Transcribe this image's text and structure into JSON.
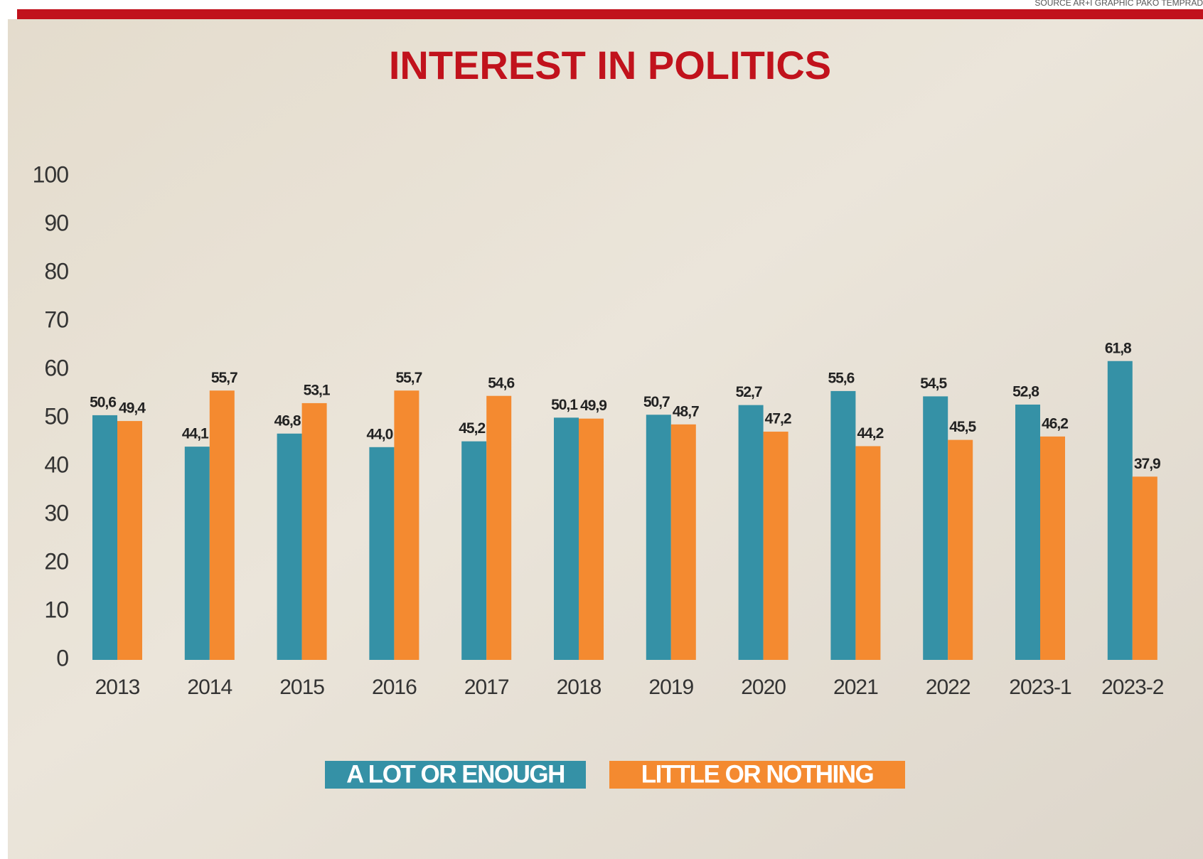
{
  "chart_data": {
    "type": "bar",
    "title": "INTEREST IN POLITICS",
    "source": "SOURCE AR+I GRAPHIC PAKO TEMPRAD",
    "categories": [
      "2013",
      "2014",
      "2015",
      "2016",
      "2017",
      "2018",
      "2019",
      "2020",
      "2021",
      "2022",
      "2023-1",
      "2023-2"
    ],
    "series": [
      {
        "name": "A LOT OR ENOUGH",
        "color": "#3591a6",
        "values": [
          50.6,
          44.1,
          46.8,
          44.0,
          45.2,
          50.1,
          50.7,
          52.7,
          55.6,
          54.5,
          52.8,
          61.8
        ],
        "value_labels": [
          "50,6",
          "44,1",
          "46,8",
          "44,0",
          "45,2",
          "50,1",
          "50,7",
          "52,7",
          "55,6",
          "54,5",
          "52,8",
          "61,8"
        ]
      },
      {
        "name": "LITTLE OR NOTHING",
        "color": "#f48a30",
        "values": [
          49.4,
          55.7,
          53.1,
          55.7,
          54.6,
          49.9,
          48.7,
          47.2,
          44.2,
          45.5,
          46.2,
          37.9
        ],
        "value_labels": [
          "49,4",
          "55,7",
          "53,1",
          "55,7",
          "54,6",
          "49,9",
          "48,7",
          "47,2",
          "44,2",
          "45,5",
          "46,2",
          "37,9"
        ]
      }
    ],
    "ylim": [
      0,
      100
    ],
    "yticks": [
      0,
      10,
      20,
      30,
      40,
      50,
      60,
      70,
      80,
      90,
      100
    ],
    "grid": false
  }
}
